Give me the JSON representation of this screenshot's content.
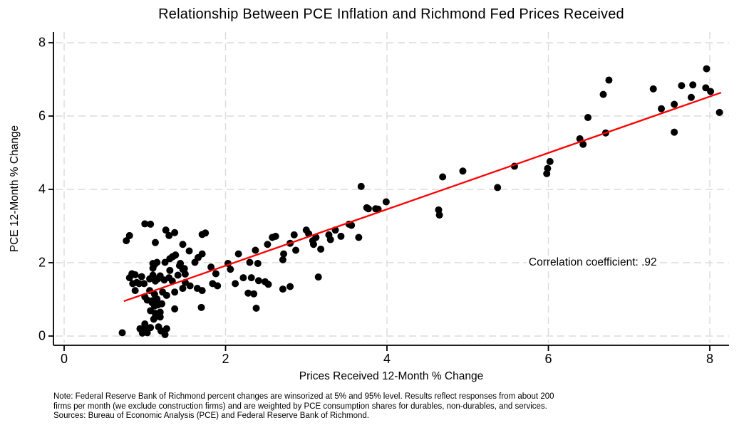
{
  "colors": {
    "point": "#000000",
    "trend": "#ff0000",
    "grid": "#dcdcdc",
    "axis": "#000000",
    "background": "#ffffff",
    "text": "#000000"
  },
  "notes": [
    "Note: Federal Reserve Bank of Richmond percent changes are winsorized at 5% and 95% level. Results reflect responses from about 200",
    "firms per month (we exclude construction firms) and are weighted by PCE consumption shares for durables, non-durables, and services.",
    "Sources: Bureau of Economic Analysis (PCE) and Federal Reserve Bank of Richmond."
  ],
  "chart_data": {
    "type": "scatter",
    "title": "Relationship Between PCE Inflation and Richmond Fed Prices Received",
    "xlabel": "Prices Received 12-Month % Change",
    "ylabel": "PCE 12-Month % Change",
    "x_ticks": [
      0,
      2,
      4,
      6,
      8
    ],
    "y_ticks": [
      0,
      2,
      4,
      6,
      8
    ],
    "xlim": [
      -0.13,
      8.24
    ],
    "ylim": [
      -0.25,
      8.29
    ],
    "grid": {
      "style": "dashed",
      "axes": "both"
    },
    "legend": "none",
    "annotation": {
      "text": "Correlation coefficient: .92",
      "x": 6.55,
      "y": 2.0
    },
    "trend_line": {
      "x1": 0.74,
      "y1": 0.95,
      "x2": 8.14,
      "y2": 6.64
    },
    "points": [
      [
        0.72,
        0.09
      ],
      [
        0.94,
        0.2
      ],
      [
        0.97,
        0.08
      ],
      [
        1.0,
        0.33
      ],
      [
        1.01,
        0.19
      ],
      [
        1.03,
        0.09
      ],
      [
        1.07,
        0.23
      ],
      [
        1.17,
        0.25
      ],
      [
        1.2,
        0.14
      ],
      [
        1.25,
        0.04
      ],
      [
        1.27,
        0.2
      ],
      [
        1.11,
        0.46
      ],
      [
        1.13,
        0.52
      ],
      [
        1.19,
        0.52
      ],
      [
        1.07,
        0.69
      ],
      [
        1.13,
        0.62
      ],
      [
        1.19,
        0.65
      ],
      [
        1.09,
        0.91
      ],
      [
        1.12,
        0.82
      ],
      [
        1.16,
        0.85
      ],
      [
        1.21,
        0.88
      ],
      [
        1.03,
        0.98
      ],
      [
        1.37,
        0.74
      ],
      [
        1.7,
        0.78
      ],
      [
        2.38,
        0.76
      ],
      [
        1.0,
        1.07
      ],
      [
        1.06,
        1.24
      ],
      [
        1.12,
        1.14
      ],
      [
        1.22,
        1.2
      ],
      [
        1.27,
        1.11
      ],
      [
        1.37,
        1.2
      ],
      [
        1.47,
        1.3
      ],
      [
        1.65,
        1.3
      ],
      [
        1.71,
        1.24
      ],
      [
        0.88,
        1.24
      ],
      [
        1.09,
        0.96
      ],
      [
        1.15,
        1.01
      ],
      [
        2.28,
        1.17
      ],
      [
        2.35,
        1.15
      ],
      [
        2.71,
        1.28
      ],
      [
        2.8,
        1.35
      ],
      [
        0.85,
        1.43
      ],
      [
        0.9,
        1.46
      ],
      [
        0.93,
        1.43
      ],
      [
        0.99,
        1.43
      ],
      [
        1.13,
        1.5
      ],
      [
        1.24,
        1.53
      ],
      [
        1.34,
        1.5
      ],
      [
        1.5,
        1.46
      ],
      [
        1.56,
        1.37
      ],
      [
        1.84,
        1.43
      ],
      [
        1.9,
        1.37
      ],
      [
        0.81,
        1.59
      ],
      [
        0.84,
        1.7
      ],
      [
        0.88,
        1.67
      ],
      [
        0.96,
        1.62
      ],
      [
        1.06,
        1.56
      ],
      [
        1.1,
        1.66
      ],
      [
        1.16,
        1.56
      ],
      [
        1.18,
        1.59
      ],
      [
        1.19,
        1.64
      ],
      [
        1.3,
        1.59
      ],
      [
        1.41,
        1.66
      ],
      [
        1.5,
        1.69
      ],
      [
        2.12,
        1.43
      ],
      [
        2.22,
        1.59
      ],
      [
        2.32,
        1.59
      ],
      [
        2.41,
        1.51
      ],
      [
        2.49,
        1.48
      ],
      [
        2.53,
        1.41
      ],
      [
        3.15,
        1.61
      ],
      [
        1.1,
        1.85
      ],
      [
        1.12,
        1.95
      ],
      [
        1.31,
        1.79
      ],
      [
        1.43,
        1.92
      ],
      [
        1.47,
        1.82
      ],
      [
        1.49,
        1.84
      ],
      [
        1.82,
        1.88
      ],
      [
        1.88,
        1.7
      ],
      [
        1.1,
        1.98
      ],
      [
        1.15,
        2.01
      ],
      [
        1.25,
        2.01
      ],
      [
        1.44,
        1.98
      ],
      [
        1.62,
        2.01
      ],
      [
        2.03,
        1.98
      ],
      [
        2.06,
        1.82
      ],
      [
        2.3,
        2.01
      ],
      [
        2.4,
        1.98
      ],
      [
        2.71,
        2.08
      ],
      [
        1.31,
        2.11
      ],
      [
        1.35,
        2.17
      ],
      [
        1.66,
        2.14
      ],
      [
        1.71,
        2.24
      ],
      [
        1.34,
        2.16
      ],
      [
        1.38,
        2.21
      ],
      [
        1.55,
        2.32
      ],
      [
        2.16,
        2.24
      ],
      [
        2.37,
        2.34
      ],
      [
        2.72,
        2.24
      ],
      [
        2.87,
        2.34
      ],
      [
        3.18,
        2.37
      ],
      [
        1.47,
        2.5
      ],
      [
        2.52,
        2.5
      ],
      [
        2.8,
        2.53
      ],
      [
        3.09,
        2.5
      ],
      [
        1.13,
        2.55
      ],
      [
        0.77,
        2.6
      ],
      [
        0.81,
        2.74
      ],
      [
        1.26,
        2.89
      ],
      [
        1.3,
        2.74
      ],
      [
        1.37,
        2.82
      ],
      [
        1.71,
        2.77
      ],
      [
        1.75,
        2.81
      ],
      [
        1.0,
        3.06
      ],
      [
        1.07,
        3.05
      ],
      [
        2.58,
        2.69
      ],
      [
        2.62,
        2.72
      ],
      [
        2.85,
        2.76
      ],
      [
        3.0,
        2.89
      ],
      [
        3.03,
        2.79
      ],
      [
        3.08,
        2.6
      ],
      [
        3.12,
        2.69
      ],
      [
        3.28,
        2.76
      ],
      [
        3.3,
        2.63
      ],
      [
        3.36,
        2.89
      ],
      [
        3.43,
        2.72
      ],
      [
        3.53,
        3.05
      ],
      [
        3.65,
        2.69
      ],
      [
        3.56,
        3.02
      ],
      [
        3.75,
        3.5
      ],
      [
        3.86,
        3.47
      ],
      [
        3.77,
        3.47
      ],
      [
        3.89,
        3.46
      ],
      [
        3.99,
        3.66
      ],
      [
        3.68,
        4.08
      ],
      [
        4.64,
        3.44
      ],
      [
        4.65,
        3.3
      ],
      [
        4.69,
        4.34
      ],
      [
        4.94,
        4.5
      ],
      [
        5.37,
        4.05
      ],
      [
        5.58,
        4.63
      ],
      [
        5.98,
        4.43
      ],
      [
        5.99,
        4.57
      ],
      [
        6.02,
        4.76
      ],
      [
        6.39,
        5.38
      ],
      [
        6.43,
        5.23
      ],
      [
        6.49,
        5.96
      ],
      [
        6.68,
        6.59
      ],
      [
        6.71,
        5.54
      ],
      [
        6.75,
        6.98
      ],
      [
        7.3,
        6.74
      ],
      [
        7.4,
        6.2
      ],
      [
        7.56,
        6.32
      ],
      [
        7.56,
        5.56
      ],
      [
        7.65,
        6.83
      ],
      [
        7.79,
        6.85
      ],
      [
        7.77,
        6.51
      ],
      [
        7.95,
        6.77
      ],
      [
        8.01,
        6.67
      ],
      [
        7.96,
        7.29
      ],
      [
        8.12,
        6.1
      ]
    ]
  }
}
